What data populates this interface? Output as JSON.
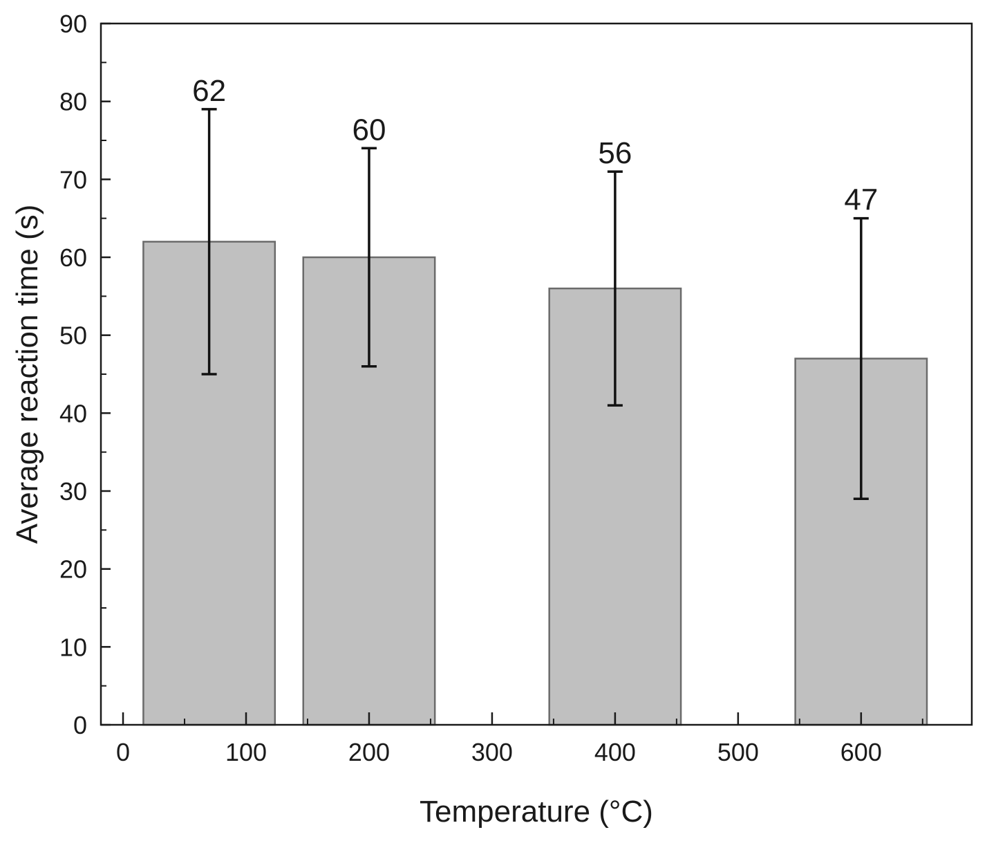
{
  "chart_data": {
    "type": "bar",
    "title": "",
    "xlabel": "Temperature (°C)",
    "ylabel": "Average reaction time (s)",
    "xlim": [
      -18,
      690
    ],
    "ylim": [
      0,
      90
    ],
    "x_ticks": [
      0,
      100,
      200,
      300,
      400,
      500,
      600
    ],
    "x_ticks_minor": [
      50,
      150,
      250,
      350,
      450,
      550,
      650
    ],
    "y_ticks": [
      0,
      10,
      20,
      30,
      40,
      50,
      60,
      70,
      80,
      90
    ],
    "y_ticks_minor": [
      5,
      15,
      25,
      35,
      45,
      55,
      65,
      75,
      85
    ],
    "bar_width": 107,
    "x": [
      70,
      200,
      400,
      600
    ],
    "values": [
      62,
      60,
      56,
      47
    ],
    "error_low": [
      45,
      46,
      41,
      29
    ],
    "error_high": [
      79,
      74,
      71,
      65
    ],
    "data_labels": [
      "62",
      "60",
      "56",
      "47"
    ],
    "bar_color": "#c0c0c0",
    "bar_edge_color": "#6b6b6b",
    "grid": false
  }
}
